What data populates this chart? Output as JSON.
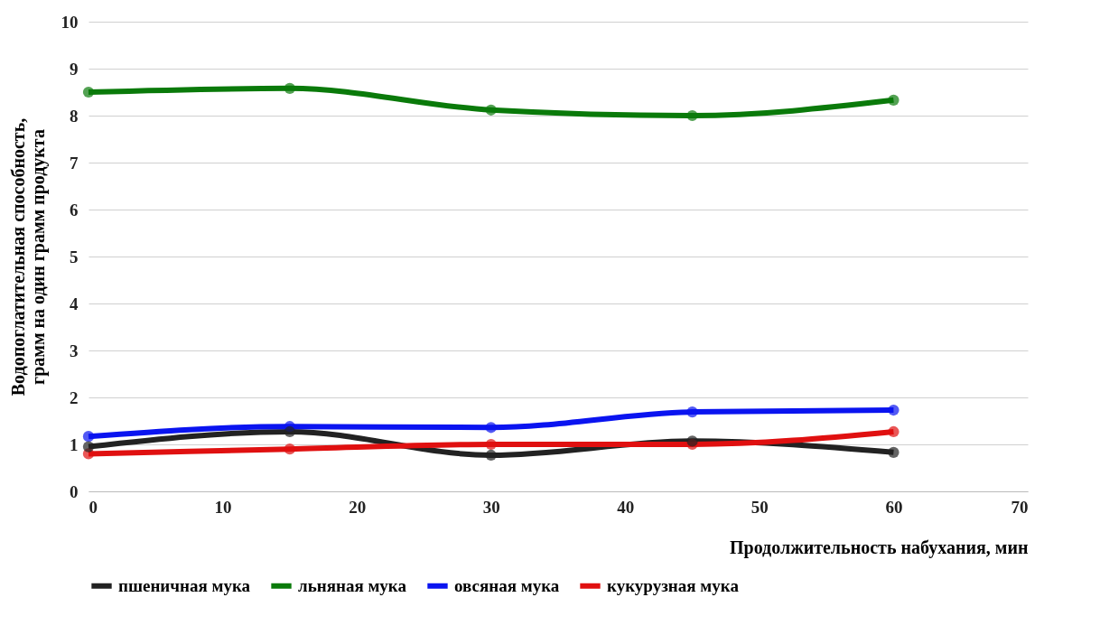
{
  "chart_data": {
    "type": "line",
    "xlabel": "Продолжительность набухания, мин",
    "ylabel": "Водопоглатительная способность, грамм на один грамм продукта",
    "x": [
      0,
      15,
      30,
      45,
      60
    ],
    "series": [
      {
        "name": "пшеничная мука",
        "color": "#222222",
        "values": [
          0.95,
          1.27,
          0.77,
          1.07,
          0.83
        ]
      },
      {
        "name": "льняная мука",
        "color": "#0a7a0a",
        "values": [
          8.5,
          8.58,
          8.12,
          8.0,
          8.33
        ]
      },
      {
        "name": "овсяная мука",
        "color": "#0a14f0",
        "values": [
          1.17,
          1.38,
          1.36,
          1.69,
          1.73
        ]
      },
      {
        "name": "кукурузная мука",
        "color": "#e01010",
        "values": [
          0.8,
          0.9,
          1.0,
          1.0,
          1.27
        ]
      }
    ],
    "xlim": [
      0,
      70
    ],
    "xticks": [
      0,
      10,
      20,
      30,
      40,
      50,
      60,
      70
    ],
    "ylim": [
      0,
      10
    ],
    "yticks": [
      0,
      1,
      2,
      3,
      4,
      5,
      6,
      7,
      8,
      9,
      10
    ],
    "grid": "y",
    "legend": "bottom",
    "marker": "circle",
    "line_style": "solid"
  }
}
